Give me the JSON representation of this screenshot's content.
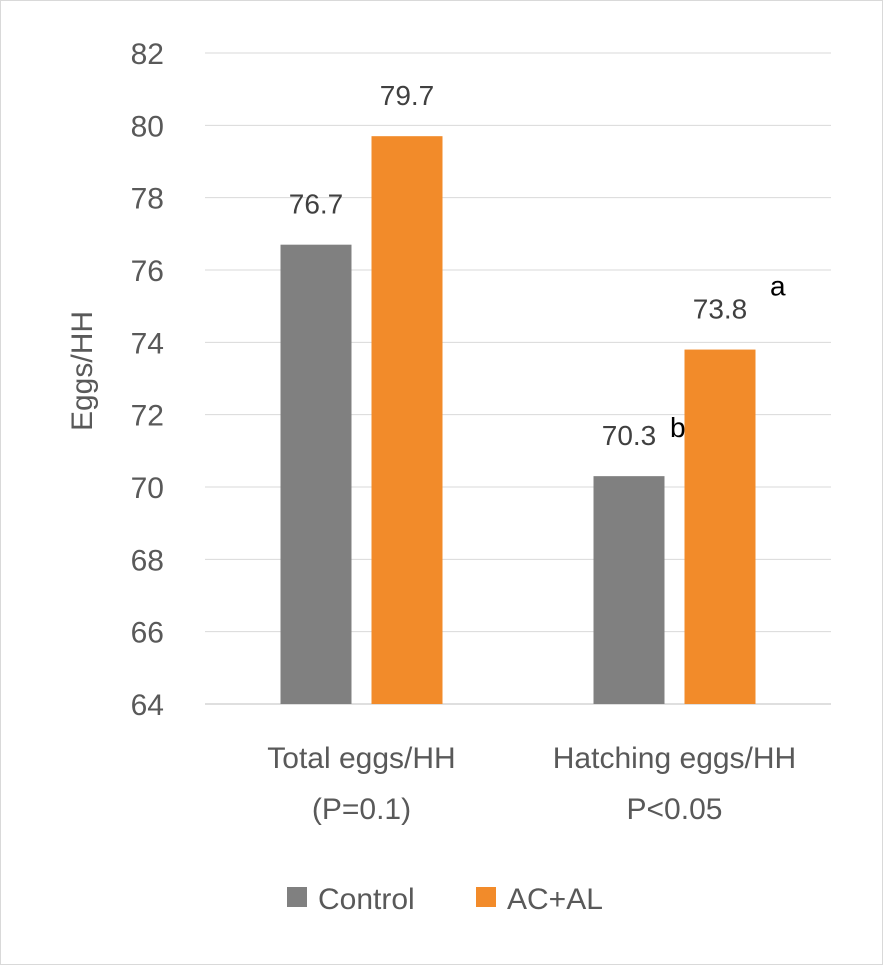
{
  "chart_data": {
    "type": "bar",
    "title": "",
    "xlabel": "",
    "ylabel": "Eggs/HH",
    "ylim": [
      64,
      82
    ],
    "yticks": [
      64,
      66,
      68,
      70,
      72,
      74,
      76,
      78,
      80,
      82
    ],
    "grid": true,
    "legend_position": "bottom",
    "categories": [
      {
        "line1": "Total eggs/HH",
        "line2": "(P=0.1)"
      },
      {
        "line1": "Hatching eggs/HH",
        "line2": "P<0.05"
      }
    ],
    "series": [
      {
        "name": "Control",
        "color": "#808080",
        "values": [
          76.7,
          70.3
        ],
        "labels": [
          "76.7",
          "70.3"
        ],
        "superscripts": [
          "",
          "b"
        ]
      },
      {
        "name": "AC+AL",
        "color": "#f28b2a",
        "values": [
          79.7,
          73.8
        ],
        "labels": [
          "79.7",
          "73.8"
        ],
        "superscripts": [
          "",
          "a"
        ]
      }
    ]
  }
}
